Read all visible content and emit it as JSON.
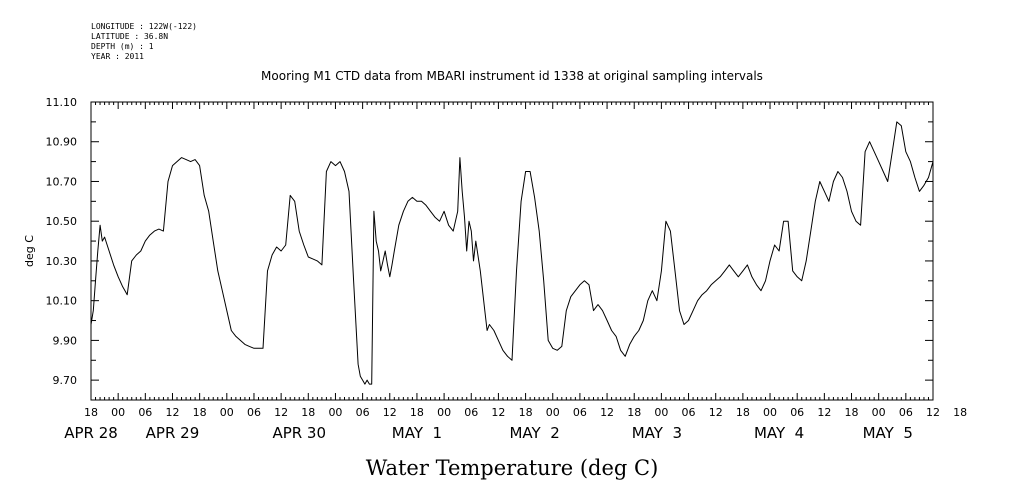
{
  "metadata": {
    "lines": [
      "LONGITUDE : 122W(-122)",
      "LATITUDE : 36.8N",
      "DEPTH (m) : 1",
      "YEAR : 2011"
    ]
  },
  "chart_data": {
    "type": "line",
    "title": "Mooring M1 CTD data from MBARI instrument id 1338 at original sampling intervals",
    "xlabel": "Water Temperature (deg C)",
    "ylabel": "deg C",
    "ylim": [
      9.6,
      11.1
    ],
    "yticks": [
      "9.70",
      "9.90",
      "10.10",
      "10.30",
      "10.50",
      "10.70",
      "10.90",
      "11.10"
    ],
    "xlim_hours": [
      0,
      186
    ],
    "x_hour_labels": [
      "18",
      "00",
      "06",
      "12",
      "18",
      "00",
      "06",
      "12",
      "18",
      "00",
      "06",
      "12",
      "18",
      "00",
      "06",
      "12",
      "18",
      "00",
      "06",
      "12",
      "18",
      "00",
      "06",
      "12",
      "18",
      "00",
      "06",
      "12",
      "18",
      "00",
      "06",
      "12",
      "18"
    ],
    "x_date_labels": [
      {
        "label": "APR 28",
        "hour": 0
      },
      {
        "label": "APR 29",
        "hour": 18
      },
      {
        "label": "APR 30",
        "hour": 46
      },
      {
        "label": "MAY  1",
        "hour": 72
      },
      {
        "label": "MAY  2",
        "hour": 98
      },
      {
        "label": "MAY  3",
        "hour": 125
      },
      {
        "label": "MAY  4",
        "hour": 152
      },
      {
        "label": "MAY  5",
        "hour": 176
      }
    ],
    "grid": false,
    "series": [
      {
        "x": [
          0,
          0.5,
          1,
          1.5,
          2,
          2.5,
          3,
          4,
          5,
          6,
          7,
          7.5,
          8,
          9,
          10,
          11,
          12,
          13,
          14,
          15,
          16,
          17,
          18,
          19,
          20,
          21,
          22,
          23,
          24,
          25,
          26,
          27,
          28,
          29,
          30,
          31,
          32,
          33,
          34,
          35,
          36,
          37,
          38,
          39,
          40,
          41,
          42,
          43,
          44,
          45,
          46,
          47,
          48,
          49,
          50,
          51,
          52,
          53,
          54,
          55,
          56,
          57,
          58,
          59,
          59.5,
          60,
          60.5,
          61,
          61.5,
          62,
          62.5,
          63,
          63.5,
          64,
          64.5,
          65,
          65.5,
          66,
          66.5,
          67,
          68,
          69,
          70,
          71,
          72,
          73,
          74,
          75,
          76,
          77,
          78,
          79,
          80,
          81,
          81.5,
          82,
          82.5,
          83,
          83.5,
          84,
          84.5,
          85,
          86,
          87,
          87.5,
          88,
          89,
          90,
          91,
          92,
          93,
          94,
          95,
          96,
          97,
          98,
          99,
          100,
          101,
          102,
          103,
          104,
          105,
          106,
          107,
          108,
          109,
          110,
          111,
          112,
          113,
          114,
          115,
          116,
          117,
          118,
          119,
          120,
          121,
          122,
          123,
          124,
          125,
          126,
          127,
          128,
          129,
          130,
          131,
          132,
          133,
          134,
          135,
          136,
          137,
          138,
          139,
          140,
          141,
          142,
          143,
          144,
          145,
          146,
          147,
          148,
          149,
          150,
          151,
          152,
          153,
          154,
          155,
          156,
          157,
          158,
          159,
          160,
          161,
          162,
          163,
          164,
          165,
          166,
          167,
          168,
          169,
          170,
          171,
          172,
          173,
          174,
          175,
          176,
          177,
          178,
          179,
          180,
          181,
          182,
          183,
          184,
          185,
          186
        ],
        "y": [
          9.98,
          10.05,
          10.2,
          10.35,
          10.48,
          10.4,
          10.42,
          10.35,
          10.28,
          10.22,
          10.17,
          10.15,
          10.13,
          10.3,
          10.33,
          10.35,
          10.4,
          10.43,
          10.45,
          10.46,
          10.45,
          10.7,
          10.78,
          10.8,
          10.82,
          10.81,
          10.8,
          10.81,
          10.78,
          10.63,
          10.55,
          10.4,
          10.25,
          10.15,
          10.05,
          9.95,
          9.92,
          9.9,
          9.88,
          9.87,
          9.86,
          9.86,
          9.86,
          10.25,
          10.33,
          10.37,
          10.35,
          10.38,
          10.63,
          10.6,
          10.45,
          10.38,
          10.32,
          10.31,
          10.3,
          10.28,
          10.75,
          10.8,
          10.78,
          10.8,
          10.75,
          10.65,
          10.2,
          9.78,
          9.72,
          9.7,
          9.68,
          9.7,
          9.68,
          9.68,
          10.55,
          10.4,
          10.35,
          10.25,
          10.3,
          10.35,
          10.28,
          10.22,
          10.28,
          10.35,
          10.48,
          10.55,
          10.6,
          10.62,
          10.6,
          10.6,
          10.58,
          10.55,
          10.52,
          10.5,
          10.55,
          10.48,
          10.45,
          10.55,
          10.82,
          10.65,
          10.52,
          10.35,
          10.5,
          10.45,
          10.3,
          10.4,
          10.25,
          10.05,
          9.95,
          9.98,
          9.95,
          9.9,
          9.85,
          9.82,
          9.8,
          10.25,
          10.6,
          10.75,
          10.75,
          10.62,
          10.45,
          10.2,
          9.9,
          9.86,
          9.85,
          9.87,
          10.05,
          10.12,
          10.15,
          10.18,
          10.2,
          10.18,
          10.05,
          10.08,
          10.05,
          10.0,
          9.95,
          9.92,
          9.85,
          9.82,
          9.88,
          9.92,
          9.95,
          10.0,
          10.1,
          10.15,
          10.1,
          10.25,
          10.5,
          10.45,
          10.25,
          10.05,
          9.98,
          10.0,
          10.05,
          10.1,
          10.13,
          10.15,
          10.18,
          10.2,
          10.22,
          10.25,
          10.28,
          10.25,
          10.22,
          10.25,
          10.28,
          10.22,
          10.18,
          10.15,
          10.2,
          10.3,
          10.38,
          10.35,
          10.5,
          10.5,
          10.25,
          10.22,
          10.2,
          10.3,
          10.45,
          10.6,
          10.7,
          10.65,
          10.6,
          10.7,
          10.75,
          10.72,
          10.65,
          10.55,
          10.5,
          10.48,
          10.85,
          10.9,
          10.85,
          10.8,
          10.75,
          10.7,
          10.85,
          11.0,
          10.98,
          10.85,
          10.8,
          10.72,
          10.65,
          10.68,
          10.72,
          10.8
        ]
      }
    ]
  }
}
